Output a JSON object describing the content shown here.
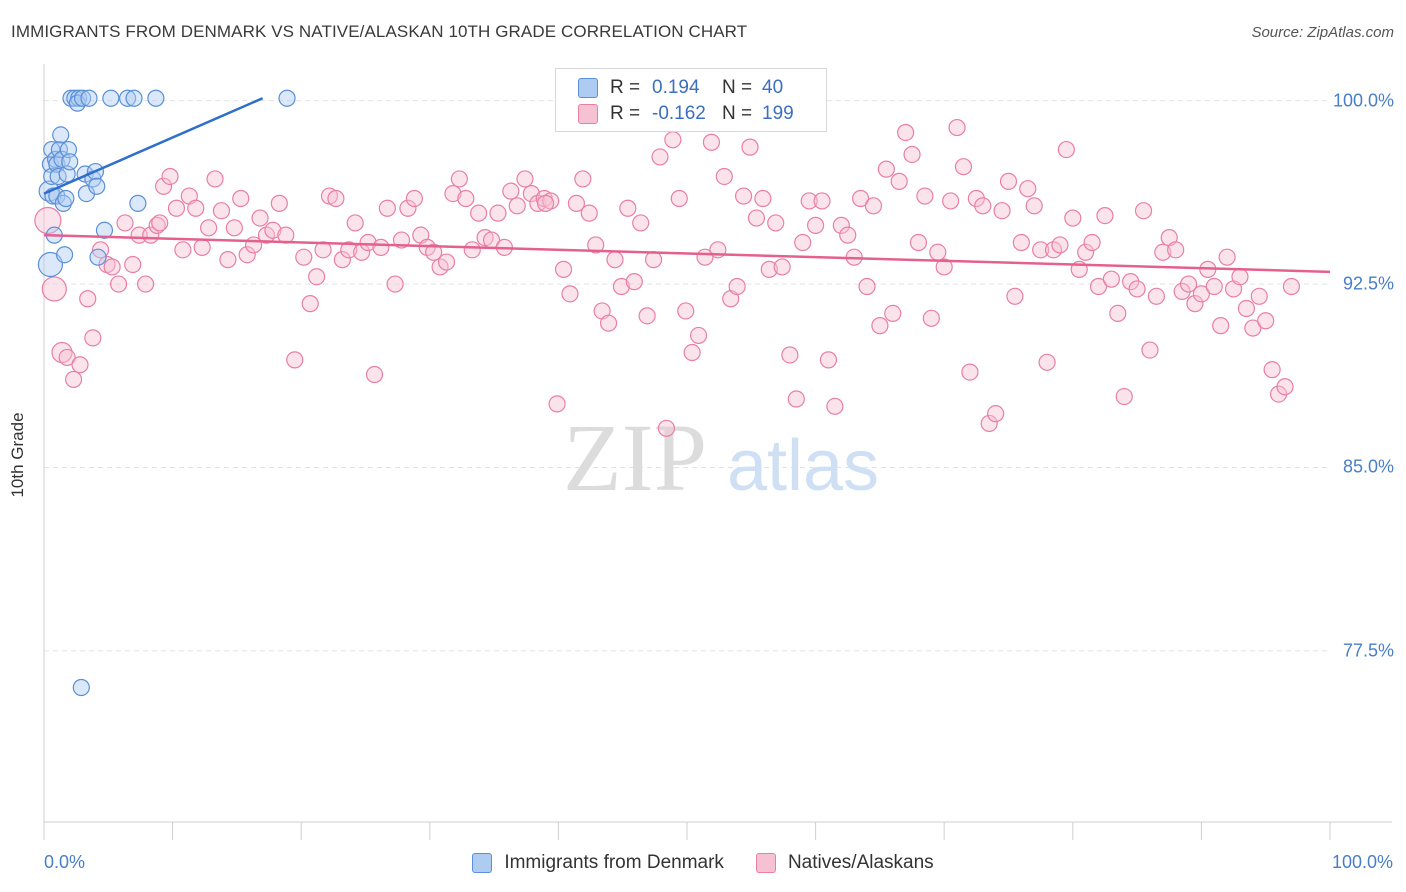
{
  "header": {
    "title": "IMMIGRANTS FROM DENMARK VS NATIVE/ALASKAN 10TH GRADE CORRELATION CHART",
    "source": "Source: ZipAtlas.com"
  },
  "watermark": {
    "zip": "ZIP",
    "atlas": "atlas"
  },
  "legend": {
    "r_label": "R =",
    "n_label": "N =",
    "series_a": {
      "r": "0.194",
      "n": "40"
    },
    "series_b": {
      "r": "-0.162",
      "n": "199"
    }
  },
  "colors": {
    "blue_fill": "#aecbf2",
    "blue_stroke": "#5b8fd9",
    "blue_line": "#2f6fcc",
    "pink_fill": "#f6c1d3",
    "pink_stroke": "#e97fa3",
    "pink_line": "#e4608e",
    "tick_text": "#4a7ec9"
  },
  "chart_data": {
    "type": "scatter",
    "title": "IMMIGRANTS FROM DENMARK VS NATIVE/ALASKAN 10TH GRADE CORRELATION CHART",
    "xlabel": "",
    "ylabel": "10th Grade",
    "xlim": [
      0,
      100
    ],
    "ylim": [
      70.5,
      101.5
    ],
    "x_tick_labels": [
      "0.0%",
      "100.0%"
    ],
    "y_ticks": [
      100.0,
      92.5,
      85.0,
      77.5
    ],
    "y_tick_labels": [
      "100.0%",
      "92.5%",
      "85.0%",
      "77.5%"
    ],
    "grid": true,
    "legend_position": "top-center",
    "series": [
      {
        "name": "Immigrants from Denmark",
        "r": 0.194,
        "n": 40,
        "trend": {
          "x": [
            0.0,
            17.0
          ],
          "y": [
            96.2,
            100.1
          ]
        },
        "points": [
          [
            0.5,
            93.3
          ],
          [
            0.4,
            96.3
          ],
          [
            0.5,
            97.4
          ],
          [
            0.6,
            98.0
          ],
          [
            0.6,
            96.9
          ],
          [
            0.7,
            96.1
          ],
          [
            0.8,
            94.5
          ],
          [
            0.9,
            97.6
          ],
          [
            1.0,
            97.4
          ],
          [
            1.0,
            96.1
          ],
          [
            1.1,
            96.9
          ],
          [
            1.2,
            98.0
          ],
          [
            1.3,
            98.6
          ],
          [
            1.4,
            97.6
          ],
          [
            1.5,
            95.8
          ],
          [
            1.6,
            93.7
          ],
          [
            1.7,
            96.0
          ],
          [
            1.8,
            97.0
          ],
          [
            1.9,
            98.0
          ],
          [
            2.0,
            97.5
          ],
          [
            2.1,
            100.1
          ],
          [
            2.4,
            100.1
          ],
          [
            2.7,
            100.1
          ],
          [
            2.6,
            99.9
          ],
          [
            3.0,
            100.1
          ],
          [
            3.2,
            97.0
          ],
          [
            3.3,
            96.2
          ],
          [
            3.5,
            100.1
          ],
          [
            3.8,
            96.8
          ],
          [
            4.0,
            97.1
          ],
          [
            4.1,
            96.5
          ],
          [
            4.2,
            93.6
          ],
          [
            4.7,
            94.7
          ],
          [
            5.2,
            100.1
          ],
          [
            6.5,
            100.1
          ],
          [
            7.0,
            100.1
          ],
          [
            7.3,
            95.8
          ],
          [
            8.7,
            100.1
          ],
          [
            18.9,
            100.1
          ],
          [
            2.9,
            76.0
          ]
        ]
      },
      {
        "name": "Natives/Alaskans",
        "r": -0.162,
        "n": 199,
        "trend": {
          "x": [
            0.0,
            100.0
          ],
          "y": [
            94.5,
            93.0
          ]
        },
        "points": [
          [
            0.3,
            95.1
          ],
          [
            0.8,
            92.3
          ],
          [
            1.4,
            89.7
          ],
          [
            1.8,
            89.5
          ],
          [
            2.3,
            88.6
          ],
          [
            2.8,
            89.2
          ],
          [
            3.4,
            91.9
          ],
          [
            3.8,
            90.3
          ],
          [
            4.4,
            93.9
          ],
          [
            4.9,
            93.3
          ],
          [
            5.3,
            93.2
          ],
          [
            5.8,
            92.5
          ],
          [
            6.3,
            95.0
          ],
          [
            6.9,
            93.3
          ],
          [
            7.4,
            94.5
          ],
          [
            7.9,
            92.5
          ],
          [
            8.3,
            94.5
          ],
          [
            8.8,
            94.9
          ],
          [
            9.3,
            96.5
          ],
          [
            9.8,
            96.9
          ],
          [
            10.3,
            95.6
          ],
          [
            10.8,
            93.9
          ],
          [
            11.3,
            96.1
          ],
          [
            11.8,
            95.6
          ],
          [
            12.3,
            94.0
          ],
          [
            12.8,
            94.8
          ],
          [
            13.3,
            96.8
          ],
          [
            13.8,
            95.5
          ],
          [
            14.3,
            93.5
          ],
          [
            14.8,
            94.8
          ],
          [
            15.3,
            96.0
          ],
          [
            15.8,
            93.7
          ],
          [
            16.3,
            94.1
          ],
          [
            16.8,
            95.2
          ],
          [
            17.3,
            94.5
          ],
          [
            17.8,
            94.7
          ],
          [
            18.3,
            95.8
          ],
          [
            18.8,
            94.5
          ],
          [
            19.5,
            89.4
          ],
          [
            20.2,
            93.6
          ],
          [
            20.7,
            91.7
          ],
          [
            21.2,
            92.8
          ],
          [
            21.7,
            93.9
          ],
          [
            22.2,
            96.1
          ],
          [
            22.7,
            96.0
          ],
          [
            23.2,
            93.5
          ],
          [
            23.7,
            93.9
          ],
          [
            24.2,
            95.0
          ],
          [
            24.7,
            93.8
          ],
          [
            25.2,
            94.2
          ],
          [
            25.7,
            88.8
          ],
          [
            26.2,
            94.0
          ],
          [
            26.7,
            95.6
          ],
          [
            27.3,
            92.5
          ],
          [
            27.8,
            94.3
          ],
          [
            28.3,
            95.6
          ],
          [
            28.8,
            96.0
          ],
          [
            29.3,
            94.5
          ],
          [
            29.8,
            94.0
          ],
          [
            30.3,
            93.8
          ],
          [
            30.8,
            93.2
          ],
          [
            31.3,
            93.4
          ],
          [
            31.8,
            96.2
          ],
          [
            32.3,
            96.8
          ],
          [
            32.8,
            96.0
          ],
          [
            33.3,
            93.9
          ],
          [
            33.8,
            95.4
          ],
          [
            34.3,
            94.4
          ],
          [
            34.8,
            94.3
          ],
          [
            35.3,
            95.4
          ],
          [
            35.8,
            94.0
          ],
          [
            36.3,
            96.3
          ],
          [
            36.8,
            95.7
          ],
          [
            37.4,
            96.8
          ],
          [
            37.9,
            96.2
          ],
          [
            38.4,
            95.8
          ],
          [
            38.9,
            96.0
          ],
          [
            39.4,
            95.9
          ],
          [
            39.9,
            87.6
          ],
          [
            40.4,
            93.1
          ],
          [
            40.9,
            92.1
          ],
          [
            41.4,
            95.8
          ],
          [
            41.9,
            96.8
          ],
          [
            42.4,
            95.4
          ],
          [
            42.9,
            94.1
          ],
          [
            43.4,
            91.4
          ],
          [
            43.9,
            90.9
          ],
          [
            44.4,
            93.5
          ],
          [
            44.9,
            92.4
          ],
          [
            45.4,
            95.6
          ],
          [
            45.9,
            92.6
          ],
          [
            46.4,
            95.0
          ],
          [
            46.9,
            91.2
          ],
          [
            47.4,
            93.5
          ],
          [
            47.9,
            97.7
          ],
          [
            48.4,
            86.6
          ],
          [
            48.9,
            98.4
          ],
          [
            49.4,
            96.0
          ],
          [
            49.9,
            91.4
          ],
          [
            50.4,
            89.7
          ],
          [
            50.9,
            90.4
          ],
          [
            51.4,
            93.6
          ],
          [
            51.9,
            98.3
          ],
          [
            52.4,
            93.9
          ],
          [
            52.9,
            96.9
          ],
          [
            53.4,
            91.9
          ],
          [
            53.9,
            92.4
          ],
          [
            54.4,
            96.1
          ],
          [
            54.9,
            98.1
          ],
          [
            55.4,
            95.2
          ],
          [
            55.9,
            96.0
          ],
          [
            56.4,
            93.1
          ],
          [
            56.9,
            95.0
          ],
          [
            57.4,
            93.2
          ],
          [
            58.0,
            89.6
          ],
          [
            58.5,
            87.8
          ],
          [
            59.0,
            94.2
          ],
          [
            59.5,
            95.9
          ],
          [
            60.0,
            94.9
          ],
          [
            60.5,
            95.9
          ],
          [
            61.0,
            89.4
          ],
          [
            61.5,
            87.5
          ],
          [
            62.0,
            94.9
          ],
          [
            62.5,
            94.5
          ],
          [
            63.0,
            93.6
          ],
          [
            63.5,
            96.0
          ],
          [
            64.0,
            92.4
          ],
          [
            64.5,
            95.7
          ],
          [
            65.0,
            90.8
          ],
          [
            65.5,
            97.2
          ],
          [
            66.0,
            91.3
          ],
          [
            66.5,
            96.7
          ],
          [
            67.0,
            98.7
          ],
          [
            67.5,
            97.8
          ],
          [
            68.0,
            94.2
          ],
          [
            68.5,
            96.1
          ],
          [
            69.0,
            91.1
          ],
          [
            69.5,
            93.8
          ],
          [
            70.0,
            93.2
          ],
          [
            70.5,
            95.9
          ],
          [
            71.0,
            98.9
          ],
          [
            71.5,
            97.3
          ],
          [
            72.0,
            88.9
          ],
          [
            72.5,
            96.0
          ],
          [
            73.0,
            95.7
          ],
          [
            73.5,
            86.8
          ],
          [
            74.0,
            87.2
          ],
          [
            74.5,
            95.5
          ],
          [
            75.0,
            96.7
          ],
          [
            75.5,
            92.0
          ],
          [
            76.0,
            94.2
          ],
          [
            76.5,
            96.4
          ],
          [
            77.0,
            95.7
          ],
          [
            77.5,
            93.9
          ],
          [
            78.0,
            89.3
          ],
          [
            78.5,
            93.9
          ],
          [
            79.0,
            94.1
          ],
          [
            79.5,
            98.0
          ],
          [
            80.0,
            95.2
          ],
          [
            80.5,
            93.1
          ],
          [
            81.0,
            93.8
          ],
          [
            81.5,
            94.2
          ],
          [
            82.0,
            92.4
          ],
          [
            82.5,
            95.3
          ],
          [
            83.0,
            92.7
          ],
          [
            83.5,
            91.3
          ],
          [
            84.0,
            87.9
          ],
          [
            84.5,
            92.6
          ],
          [
            85.0,
            92.3
          ],
          [
            85.5,
            95.5
          ],
          [
            86.0,
            89.8
          ],
          [
            86.5,
            92.0
          ],
          [
            87.0,
            93.8
          ],
          [
            87.5,
            94.4
          ],
          [
            88.0,
            93.9
          ],
          [
            88.5,
            92.2
          ],
          [
            89.0,
            92.5
          ],
          [
            89.5,
            91.7
          ],
          [
            90.0,
            92.1
          ],
          [
            90.5,
            93.1
          ],
          [
            91.0,
            92.4
          ],
          [
            91.5,
            90.8
          ],
          [
            92.0,
            93.6
          ],
          [
            92.5,
            92.3
          ],
          [
            93.0,
            92.8
          ],
          [
            93.5,
            91.5
          ],
          [
            94.0,
            90.7
          ],
          [
            94.5,
            92.0
          ],
          [
            95.0,
            91.0
          ],
          [
            95.5,
            89.0
          ],
          [
            96.0,
            88.0
          ],
          [
            96.5,
            88.3
          ],
          [
            97.0,
            92.4
          ],
          [
            39.0,
            95.8
          ],
          [
            9.0,
            95.0
          ]
        ]
      }
    ]
  }
}
